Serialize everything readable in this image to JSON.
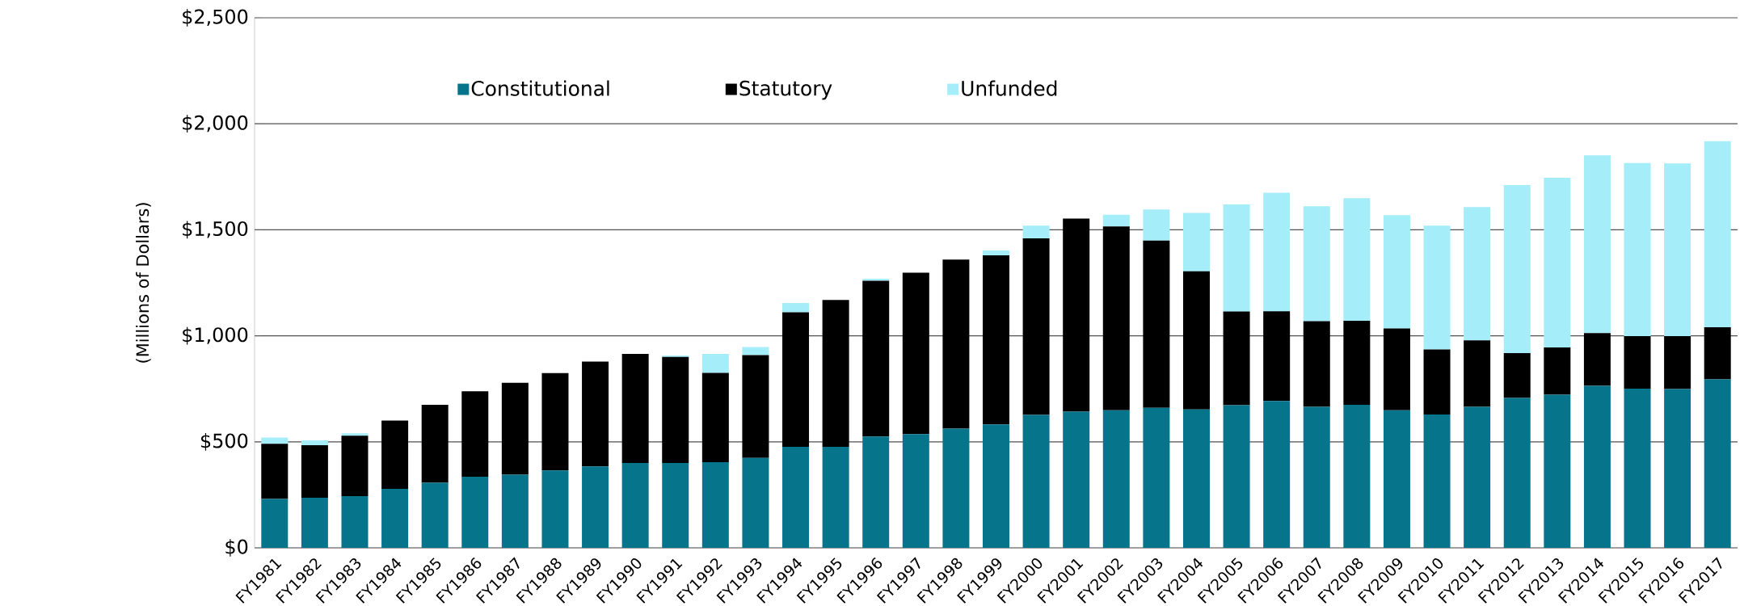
{
  "chart_data": {
    "type": "bar",
    "stacked": true,
    "ylabel": "(Millions of Dollars)",
    "categories": [
      "FY1981",
      "FY1982",
      "FY1983",
      "FY1984",
      "FY1985",
      "FY1986",
      "FY1987",
      "FY1988",
      "FY1989",
      "FY1990",
      "FY1991",
      "FY1992",
      "FY1993",
      "FY1994",
      "FY1995",
      "FY1996",
      "FY1997",
      "FY1998",
      "FY1999",
      "FY2000",
      "FY2001",
      "FY2002",
      "FY2003",
      "FY2004",
      "FY2005",
      "FY2006",
      "FY2007",
      "FY2008",
      "FY2009",
      "FY2010",
      "FY2011",
      "FY2012",
      "FY2013",
      "FY2014",
      "FY2015",
      "FY2016",
      "FY2017"
    ],
    "series": [
      {
        "name": "Constitutional",
        "color": "#06758c",
        "values": [
          231,
          236,
          244,
          278,
          307,
          335,
          345,
          365,
          384,
          400,
          400,
          404,
          424,
          476,
          476,
          525,
          536,
          562,
          582,
          627,
          642,
          649,
          660,
          653,
          673,
          693,
          665,
          675,
          649,
          629,
          665,
          707,
          722,
          764,
          751,
          749,
          795
        ]
      },
      {
        "name": "Statutory",
        "color": "#000000",
        "values": [
          260,
          248,
          285,
          322,
          368,
          403,
          433,
          459,
          494,
          515,
          500,
          421,
          485,
          635,
          693,
          735,
          762,
          798,
          798,
          833,
          911,
          867,
          789,
          651,
          442,
          423,
          404,
          396,
          386,
          307,
          313,
          211,
          223,
          249,
          247,
          249,
          245
        ]
      },
      {
        "name": "Unfunded",
        "color": "#a5edf9",
        "values": [
          29,
          23,
          11,
          0,
          0,
          0,
          0,
          0,
          0,
          0,
          7,
          90,
          38,
          44,
          0,
          9,
          0,
          0,
          22,
          60,
          0,
          55,
          147,
          276,
          505,
          559,
          542,
          578,
          534,
          584,
          629,
          793,
          800,
          838,
          817,
          815,
          878
        ]
      }
    ],
    "ylim": [
      0,
      2500
    ],
    "yticks": [
      {
        "value": 0,
        "label": "$0"
      },
      {
        "value": 500,
        "label": "$500"
      },
      {
        "value": 1000,
        "label": "$1,000"
      },
      {
        "value": 1500,
        "label": "$1,500"
      },
      {
        "value": 2000,
        "label": "$2,000"
      },
      {
        "value": 2500,
        "label": "$2,500"
      }
    ],
    "grid": "y",
    "legend": "top"
  }
}
